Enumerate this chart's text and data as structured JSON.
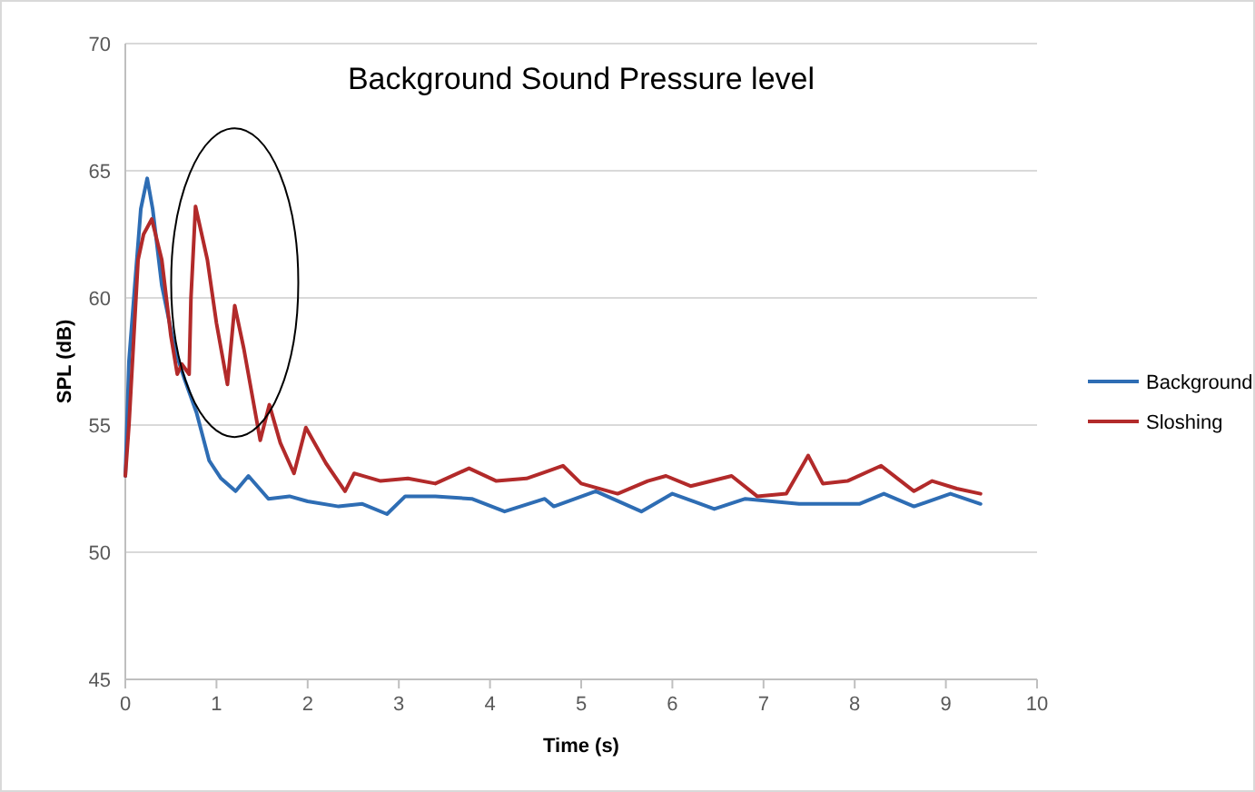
{
  "chart_data": {
    "type": "line",
    "title": "Background  Sound Pressure level",
    "xlabel": "Time (s)",
    "ylabel": "SPL (dB)",
    "xlim": [
      0,
      10
    ],
    "xticks": [
      0,
      1,
      2,
      3,
      4,
      5,
      6,
      7,
      8,
      9,
      10
    ],
    "ylim": [
      45,
      70
    ],
    "yticks": [
      45,
      50,
      55,
      60,
      65,
      70
    ],
    "grid": "y",
    "legend": "right",
    "marker": "none",
    "line_style": "solid",
    "series": [
      {
        "name": "Background",
        "color": "#2e6db4",
        "x": [
          0,
          0.04,
          0.1,
          0.17,
          0.24,
          0.3,
          0.4,
          0.55,
          0.65,
          0.78,
          0.92,
          1.05,
          1.21,
          1.35,
          1.57,
          1.8,
          2.0,
          2.34,
          2.6,
          2.87,
          3.07,
          3.4,
          3.8,
          4.16,
          4.6,
          4.7,
          5.16,
          5.66,
          6.0,
          6.46,
          6.8,
          7.39,
          8.05,
          8.32,
          8.65,
          9.05,
          9.38
        ],
        "values": [
          53,
          57.5,
          60.3,
          63.5,
          64.7,
          63.5,
          60.5,
          57.9,
          56.8,
          55.5,
          53.6,
          52.9,
          52.4,
          53.0,
          52.1,
          52.2,
          52.0,
          51.8,
          51.9,
          51.5,
          52.2,
          52.2,
          52.1,
          51.6,
          52.1,
          51.8,
          52.4,
          51.6,
          52.3,
          51.7,
          52.1,
          51.9,
          51.9,
          52.3,
          51.8,
          52.3,
          51.9
        ]
      },
      {
        "name": "Sloshing",
        "color": "#b22a2a",
        "x": [
          0,
          0.04,
          0.14,
          0.2,
          0.29,
          0.4,
          0.5,
          0.57,
          0.62,
          0.7,
          0.72,
          0.77,
          0.9,
          1.0,
          1.12,
          1.2,
          1.3,
          1.48,
          1.58,
          1.7,
          1.85,
          1.98,
          2.2,
          2.41,
          2.51,
          2.8,
          3.1,
          3.4,
          3.77,
          4.07,
          4.4,
          4.8,
          5.0,
          5.4,
          5.73,
          5.93,
          6.2,
          6.65,
          6.93,
          7.25,
          7.49,
          7.65,
          7.92,
          8.29,
          8.65,
          8.85,
          9.12,
          9.38
        ],
        "values": [
          53,
          55,
          61.5,
          62.5,
          63.1,
          61.5,
          58.5,
          57,
          57.4,
          57.0,
          60,
          63.6,
          61.5,
          59,
          56.6,
          59.7,
          58,
          54.4,
          55.8,
          54.3,
          53.1,
          54.9,
          53.5,
          52.4,
          53.1,
          52.8,
          52.9,
          52.7,
          53.3,
          52.8,
          52.9,
          53.4,
          52.7,
          52.3,
          52.8,
          53.0,
          52.6,
          53.0,
          52.2,
          52.3,
          53.8,
          52.7,
          52.8,
          53.4,
          52.4,
          52.8,
          52.5,
          52.3
        ]
      }
    ]
  }
}
